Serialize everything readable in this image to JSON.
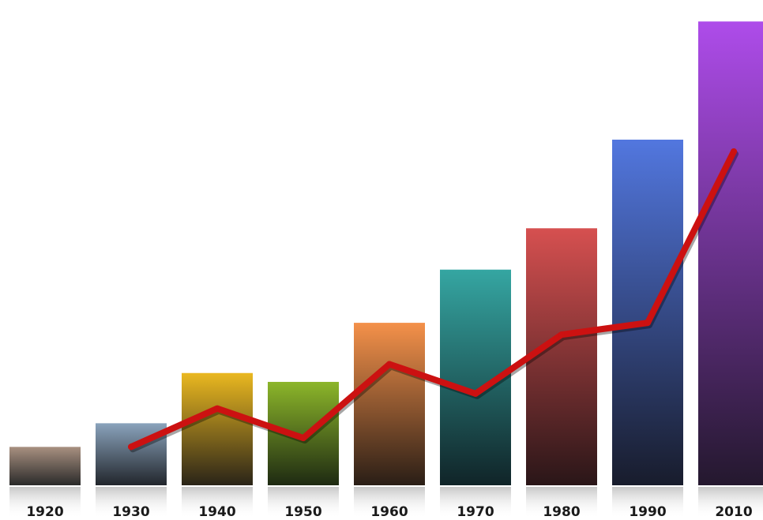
{
  "chart_data": {
    "type": "bar",
    "categories": [
      "1920",
      "1930",
      "1940",
      "1950",
      "1960",
      "1970",
      "1980",
      "1990",
      "2010"
    ],
    "series": [
      {
        "kind": "bar",
        "values": [
          13,
          21,
          38,
          35,
          55,
          73,
          87,
          117,
          157
        ]
      },
      {
        "kind": "line",
        "values": [
          null,
          13,
          26,
          16,
          41,
          31,
          51,
          55,
          113
        ],
        "color": "#cc1111"
      }
    ],
    "ylim": [
      0,
      160
    ],
    "grid": false,
    "title": "",
    "xlabel": "",
    "ylabel": "",
    "bar_colors": [
      [
        "#a89080",
        "#2a2a2a"
      ],
      [
        "#8aa3bc",
        "#22262c"
      ],
      [
        "#eab820",
        "#2a2418"
      ],
      [
        "#8cb62a",
        "#1e2a12"
      ],
      [
        "#f4914a",
        "#2a1e16"
      ],
      [
        "#35a6a2",
        "#102428"
      ],
      [
        "#d65050",
        "#2a1618"
      ],
      [
        "#5277df",
        "#181c2c"
      ],
      [
        "#ae4cea",
        "#24182e"
      ]
    ]
  }
}
